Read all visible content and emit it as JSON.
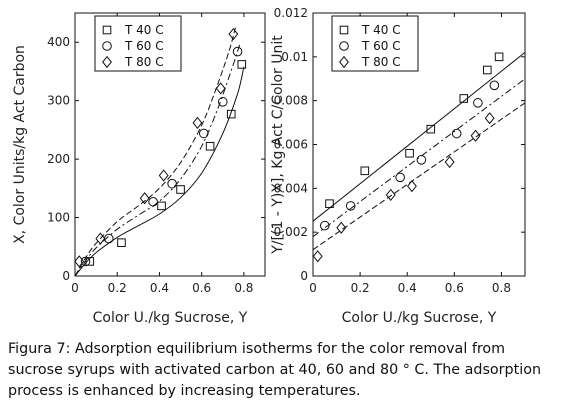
{
  "caption": "Figura 7: Adsorption equilibrium isotherms for the color removal from sucrose syrups with activated carbon at 40, 60 and 80 ° C. The adsorption process is enhanced by increasing temperatures.",
  "chart_data": [
    {
      "type": "scatter",
      "xlabel": "Color U./kg Sucrose, Y",
      "ylabel": "X, Color Units/kg Act Carbon",
      "xlim": [
        0,
        0.9
      ],
      "ylim": [
        0,
        450
      ],
      "xticks": [
        "0",
        "0.2",
        "0.4",
        "0.6",
        "0.8"
      ],
      "yticks": [
        "0",
        "100",
        "200",
        "300",
        "400"
      ],
      "grid": false,
      "legend_position": "top-left",
      "series": [
        {
          "name": "T 40 C",
          "marker": "square",
          "line": "solid",
          "points": [
            [
              0.07,
              25
            ],
            [
              0.22,
              57
            ],
            [
              0.41,
              120
            ],
            [
              0.5,
              148
            ],
            [
              0.64,
              222
            ],
            [
              0.74,
              277
            ],
            [
              0.79,
              362
            ]
          ],
          "fit": [
            [
              0,
              0
            ],
            [
              0.05,
              22
            ],
            [
              0.1,
              40
            ],
            [
              0.2,
              66
            ],
            [
              0.3,
              86
            ],
            [
              0.4,
              106
            ],
            [
              0.5,
              134
            ],
            [
              0.6,
              176
            ],
            [
              0.7,
              244
            ],
            [
              0.77,
              312
            ],
            [
              0.8,
              358
            ]
          ]
        },
        {
          "name": "T 60 C",
          "marker": "circle",
          "line": "dash-dot",
          "points": [
            [
              0.05,
              25
            ],
            [
              0.16,
              64
            ],
            [
              0.37,
              127
            ],
            [
              0.46,
              158
            ],
            [
              0.61,
              244
            ],
            [
              0.7,
              298
            ],
            [
              0.77,
              384
            ]
          ],
          "fit": [
            [
              0,
              0
            ],
            [
              0.05,
              26
            ],
            [
              0.1,
              48
            ],
            [
              0.2,
              80
            ],
            [
              0.3,
              104
            ],
            [
              0.4,
              128
            ],
            [
              0.5,
              166
            ],
            [
              0.6,
              222
            ],
            [
              0.68,
              290
            ],
            [
              0.75,
              362
            ],
            [
              0.78,
              396
            ]
          ]
        },
        {
          "name": "T 80 C",
          "marker": "diamond",
          "line": "dashed",
          "points": [
            [
              0.02,
              25
            ],
            [
              0.12,
              64
            ],
            [
              0.33,
              133
            ],
            [
              0.42,
              172
            ],
            [
              0.58,
              262
            ],
            [
              0.69,
              321
            ],
            [
              0.75,
              414
            ]
          ],
          "fit": [
            [
              0,
              0
            ],
            [
              0.05,
              31
            ],
            [
              0.1,
              56
            ],
            [
              0.2,
              93
            ],
            [
              0.3,
              120
            ],
            [
              0.4,
              150
            ],
            [
              0.5,
              194
            ],
            [
              0.6,
              258
            ],
            [
              0.67,
              322
            ],
            [
              0.73,
              385
            ],
            [
              0.76,
              425
            ]
          ]
        }
      ]
    },
    {
      "type": "scatter",
      "xlabel": "Color U./kg Sucrose, Y",
      "ylabel": "Y/[(1 - Y)X], Kg Act C/Color Unit",
      "xlim": [
        0,
        0.9
      ],
      "ylim": [
        0,
        0.012
      ],
      "xticks": [
        "0",
        "0.2",
        "0.4",
        "0.6",
        "0.8"
      ],
      "yticks": [
        "0",
        "0.002",
        "0.004",
        "0.006",
        "0.008",
        "0.01",
        "0.012"
      ],
      "grid": false,
      "legend_position": "top-left",
      "series": [
        {
          "name": "T 40 C",
          "marker": "square",
          "line": "solid",
          "points": [
            [
              0.07,
              0.0033
            ],
            [
              0.22,
              0.0048
            ],
            [
              0.41,
              0.0056
            ],
            [
              0.5,
              0.0067
            ],
            [
              0.64,
              0.0081
            ],
            [
              0.74,
              0.0094
            ],
            [
              0.79,
              0.01
            ]
          ],
          "fit": [
            [
              0,
              0.0025
            ],
            [
              0.9,
              0.0102
            ]
          ]
        },
        {
          "name": "T 60 C",
          "marker": "circle",
          "line": "dash-dot",
          "points": [
            [
              0.05,
              0.0023
            ],
            [
              0.16,
              0.0032
            ],
            [
              0.37,
              0.0045
            ],
            [
              0.46,
              0.0053
            ],
            [
              0.61,
              0.0065
            ],
            [
              0.7,
              0.0079
            ],
            [
              0.77,
              0.0087
            ]
          ],
          "fit": [
            [
              0,
              0.0018
            ],
            [
              0.9,
              0.009
            ]
          ]
        },
        {
          "name": "T 80 C",
          "marker": "diamond",
          "line": "dashed",
          "points": [
            [
              0.02,
              0.0009
            ],
            [
              0.12,
              0.0022
            ],
            [
              0.33,
              0.0037
            ],
            [
              0.42,
              0.0041
            ],
            [
              0.58,
              0.0052
            ],
            [
              0.69,
              0.0064
            ],
            [
              0.75,
              0.0072
            ]
          ],
          "fit": [
            [
              0,
              0.0012
            ],
            [
              0.9,
              0.0079
            ]
          ]
        }
      ]
    }
  ]
}
